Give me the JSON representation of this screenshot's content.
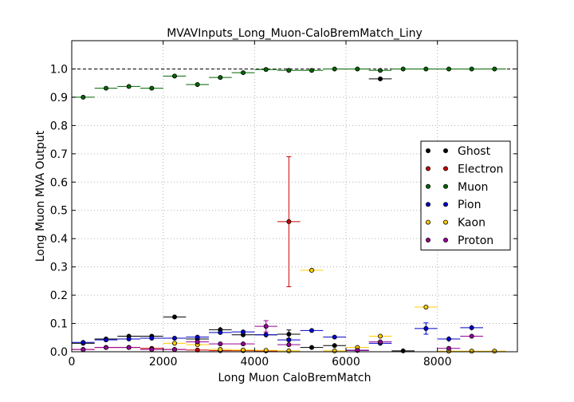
{
  "chart_data": {
    "type": "scatter",
    "title": "MVAVInputs_Long_Muon-CaloBremMatch_Liny",
    "xlabel": "Long Muon CaloBremMatch",
    "ylabel": "Long Muon MVA Output",
    "xlim": [
      0,
      9750
    ],
    "ylim": [
      0,
      1.1
    ],
    "xticks": [
      0,
      2000,
      4000,
      6000,
      8000
    ],
    "xtick_labels": [
      "0",
      "2000",
      "4000",
      "6000",
      "8000"
    ],
    "yticks": [
      0.0,
      0.1,
      0.2,
      0.3,
      0.4,
      0.5,
      0.6,
      0.7,
      0.8,
      0.9,
      1.0
    ],
    "ytick_labels": [
      "0.0",
      "0.1",
      "0.2",
      "0.3",
      "0.4",
      "0.5",
      "0.6",
      "0.7",
      "0.8",
      "0.9",
      "1.0"
    ],
    "grid": true,
    "reference_line_y": 1.0,
    "legend_position": "center-right",
    "bin_half_width": 250,
    "series": [
      {
        "name": "Ghost",
        "color": "#000000",
        "x": [
          250,
          750,
          1250,
          1750,
          2250,
          2750,
          3250,
          3750,
          4250,
          4750,
          5250,
          5750,
          6250,
          6750,
          7250
        ],
        "y": [
          0.03,
          0.045,
          0.055,
          0.055,
          0.123,
          0.045,
          0.078,
          0.06,
          0.06,
          0.062,
          0.015,
          0.022,
          0.005,
          0.965,
          0.003
        ],
        "yerr": [
          0.004,
          0.004,
          0.005,
          0.005,
          0.004,
          0.006,
          0.01,
          0.008,
          0.01,
          0.015,
          0.008,
          0.008,
          0.003,
          0.008,
          0.002
        ]
      },
      {
        "name": "Electron",
        "color": "#cc0000",
        "x": [
          250,
          750,
          1250,
          1750,
          2250,
          2750,
          3250,
          3750,
          4250,
          4750
        ],
        "y": [
          0.008,
          0.015,
          0.015,
          0.012,
          0.008,
          0.006,
          0.004,
          0.004,
          0.003,
          0.46
        ],
        "yerr": [
          0.002,
          0.002,
          0.002,
          0.002,
          0.002,
          0.002,
          0.002,
          0.002,
          0.002,
          0.23
        ]
      },
      {
        "name": "Muon",
        "color": "#006600",
        "x": [
          250,
          750,
          1250,
          1750,
          2250,
          2750,
          3250,
          3750,
          4250,
          4750,
          5250,
          5750,
          6250,
          6750,
          7250,
          7750,
          8250,
          8750,
          9250
        ],
        "y": [
          0.9,
          0.932,
          0.938,
          0.932,
          0.975,
          0.945,
          0.97,
          0.987,
          0.998,
          0.995,
          0.995,
          1.0,
          1.0,
          0.995,
          1.0,
          1.0,
          1.0,
          1.0,
          1.0
        ],
        "yerr": [
          0.005,
          0.004,
          0.004,
          0.004,
          0.003,
          0.004,
          0.003,
          0.003,
          0.002,
          0.002,
          0.002,
          0.001,
          0.001,
          0.002,
          0.001,
          0.001,
          0.001,
          0.001,
          0.001
        ]
      },
      {
        "name": "Pion",
        "color": "#0000cc",
        "x": [
          250,
          750,
          1250,
          1750,
          2250,
          2750,
          3250,
          3750,
          4250,
          4750,
          5250,
          5750,
          6250,
          6750,
          7750,
          8250,
          8750
        ],
        "y": [
          0.033,
          0.042,
          0.045,
          0.048,
          0.048,
          0.052,
          0.068,
          0.07,
          0.06,
          0.042,
          0.075,
          0.052,
          0.005,
          0.03,
          0.082,
          0.045,
          0.085
        ],
        "yerr": [
          0.003,
          0.003,
          0.003,
          0.003,
          0.003,
          0.004,
          0.005,
          0.005,
          0.006,
          0.006,
          0.006,
          0.006,
          0.003,
          0.008,
          0.02,
          0.01,
          0.01
        ]
      },
      {
        "name": "Kaon",
        "color": "#ffcc00",
        "x": [
          2250,
          2750,
          3250,
          3750,
          4250,
          4750,
          5250,
          5750,
          6250,
          6750,
          7750,
          8250,
          8750,
          9250
        ],
        "y": [
          0.03,
          0.025,
          0.008,
          0.006,
          0.005,
          0.003,
          0.288,
          0.003,
          0.015,
          0.055,
          0.158,
          0.002,
          0.002,
          0.002
        ],
        "yerr": [
          0.004,
          0.004,
          0.003,
          0.002,
          0.002,
          0.002,
          0.006,
          0.002,
          0.004,
          0.008,
          0.008,
          0.001,
          0.001,
          0.001
        ]
      },
      {
        "name": "Proton",
        "color": "#990099",
        "x": [
          250,
          750,
          1250,
          1750,
          2250,
          2750,
          3250,
          3750,
          4250,
          4750,
          6250,
          6750,
          8250,
          8750
        ],
        "y": [
          0.008,
          0.015,
          0.015,
          0.008,
          0.008,
          0.035,
          0.028,
          0.028,
          0.09,
          0.025,
          0.005,
          0.035,
          0.012,
          0.055
        ],
        "yerr": [
          0.002,
          0.002,
          0.002,
          0.002,
          0.002,
          0.004,
          0.004,
          0.005,
          0.02,
          0.008,
          0.003,
          0.008,
          0.006,
          0.008
        ]
      }
    ]
  }
}
